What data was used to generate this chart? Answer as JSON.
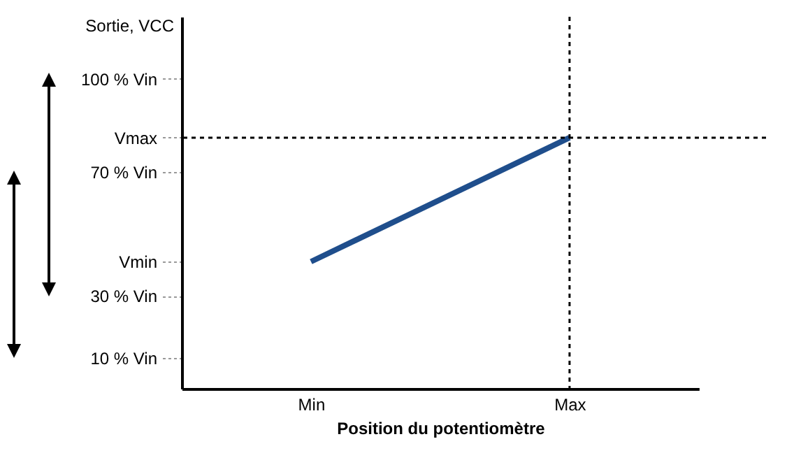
{
  "chart_data": {
    "type": "line",
    "ylabel": "Sortie, VCC",
    "xlabel": "Position du potentiomètre",
    "categories": [
      "Min",
      "Max"
    ],
    "values": [
      41,
      81
    ],
    "color": "#1f4e8c",
    "marker": "none",
    "line_style": "solid",
    "ylim": [
      0,
      120
    ],
    "yticks": [
      {
        "value": 10,
        "label": "10 % Vin"
      },
      {
        "value": 30,
        "label": "30 % Vin"
      },
      {
        "value": 41,
        "label": "Vmin"
      },
      {
        "value": 70,
        "label": "70 % Vin"
      },
      {
        "value": 81,
        "label": "Vmax"
      },
      {
        "value": 100,
        "label": "100 % Vin"
      }
    ],
    "ref_lines": [
      {
        "axis": "y",
        "value": 81,
        "line_style": "dotted",
        "color": "#000000"
      },
      {
        "axis": "x",
        "value": "Max",
        "line_style": "dotted",
        "color": "#000000"
      }
    ],
    "grid": false
  }
}
